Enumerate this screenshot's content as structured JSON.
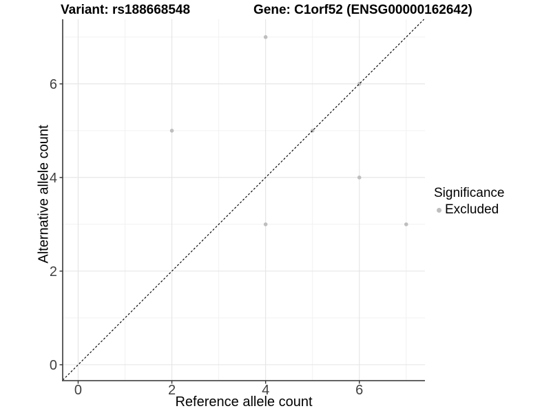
{
  "titles": {
    "variant": "Variant: rs188668548",
    "gene": "Gene: C1orf52 (ENSG00000162642)"
  },
  "chart_data": {
    "type": "scatter",
    "title_left": "Variant: rs188668548",
    "title_right": "Gene: C1orf52 (ENSG00000162642)",
    "xlabel": "Reference allele count",
    "ylabel": "Alternative allele count",
    "xlim": [
      -0.33,
      7.4
    ],
    "ylim": [
      -0.34,
      7.38
    ],
    "x_major_ticks": [
      0,
      2,
      4,
      6
    ],
    "y_major_ticks": [
      0,
      2,
      4,
      6
    ],
    "x_minor_gridlines": [
      1,
      3,
      5,
      7
    ],
    "y_minor_gridlines": [
      1,
      3,
      5,
      7
    ],
    "grid": true,
    "identity_line": {
      "style": "dashed",
      "slope": 1,
      "intercept": 0
    },
    "series": [
      {
        "name": "Excluded",
        "color": "#bebebe",
        "points": [
          [
            2,
            5
          ],
          [
            4,
            3
          ],
          [
            4,
            7
          ],
          [
            5,
            5
          ],
          [
            6,
            4
          ],
          [
            6,
            6
          ],
          [
            7,
            3
          ]
        ]
      }
    ],
    "legend": {
      "title": "Significance",
      "position": "right",
      "items": [
        {
          "label": "Excluded",
          "color": "#bebebe",
          "marker": "circle-icon"
        }
      ]
    }
  },
  "colors": {
    "background": "#ffffff",
    "grid_major": "#e4e4e4",
    "grid_minor": "#f1f1f1",
    "axis_line": "#4d4d4d",
    "tick_mark": "#333333",
    "tick_label": "#404040",
    "point": "#bebebe",
    "identity_line": "#000000",
    "text": "#000000"
  }
}
